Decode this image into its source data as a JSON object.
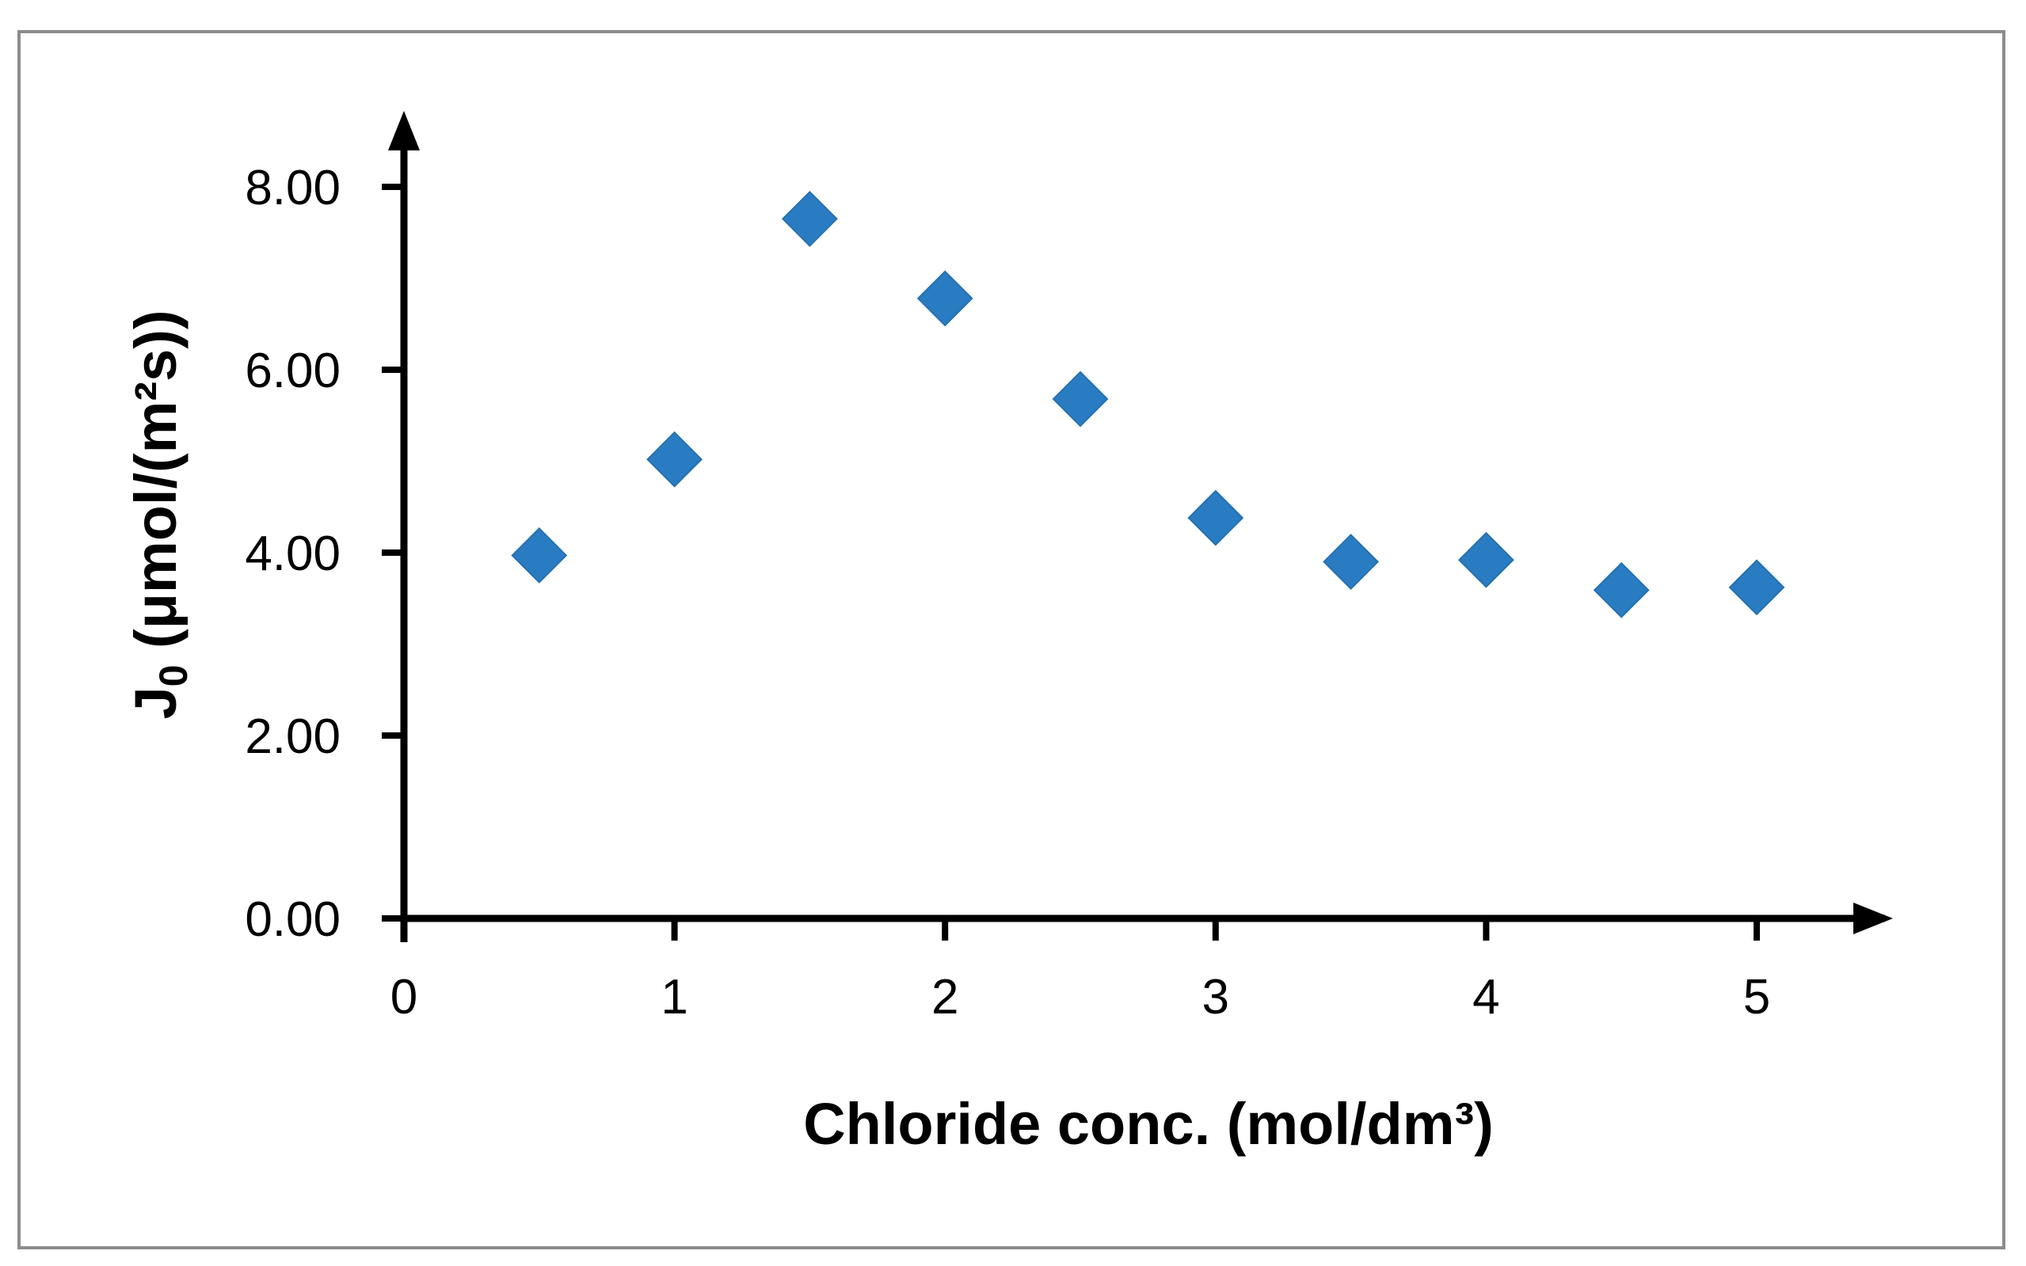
{
  "chart_data": {
    "type": "scatter",
    "xlabel": "Chloride conc. (mol/dm³)",
    "ylabel_main": "J",
    "ylabel_sub": "0",
    "ylabel_rest": " (μmol/(m²s))",
    "xlim": [
      0,
      5.5
    ],
    "ylim": [
      0,
      8.5
    ],
    "x_ticks": [
      0,
      1,
      2,
      3,
      4,
      5
    ],
    "x_tick_labels": [
      "0",
      "1",
      "2",
      "3",
      "4",
      "5"
    ],
    "y_ticks": [
      0,
      2,
      4,
      6,
      8
    ],
    "y_tick_labels": [
      "0.00",
      "2.00",
      "4.00",
      "6.00",
      "8.00"
    ],
    "grid": false,
    "legend": false,
    "marker": "diamond",
    "marker_color": "#2a7cc2",
    "series": [
      {
        "x": [
          0.5,
          1.0,
          1.5,
          2.0,
          2.5,
          3.0,
          3.5,
          4.0,
          4.5,
          5.0
        ],
        "y": [
          3.97,
          5.02,
          7.65,
          6.78,
          5.68,
          4.38,
          3.9,
          3.92,
          3.59,
          3.62
        ]
      }
    ]
  }
}
